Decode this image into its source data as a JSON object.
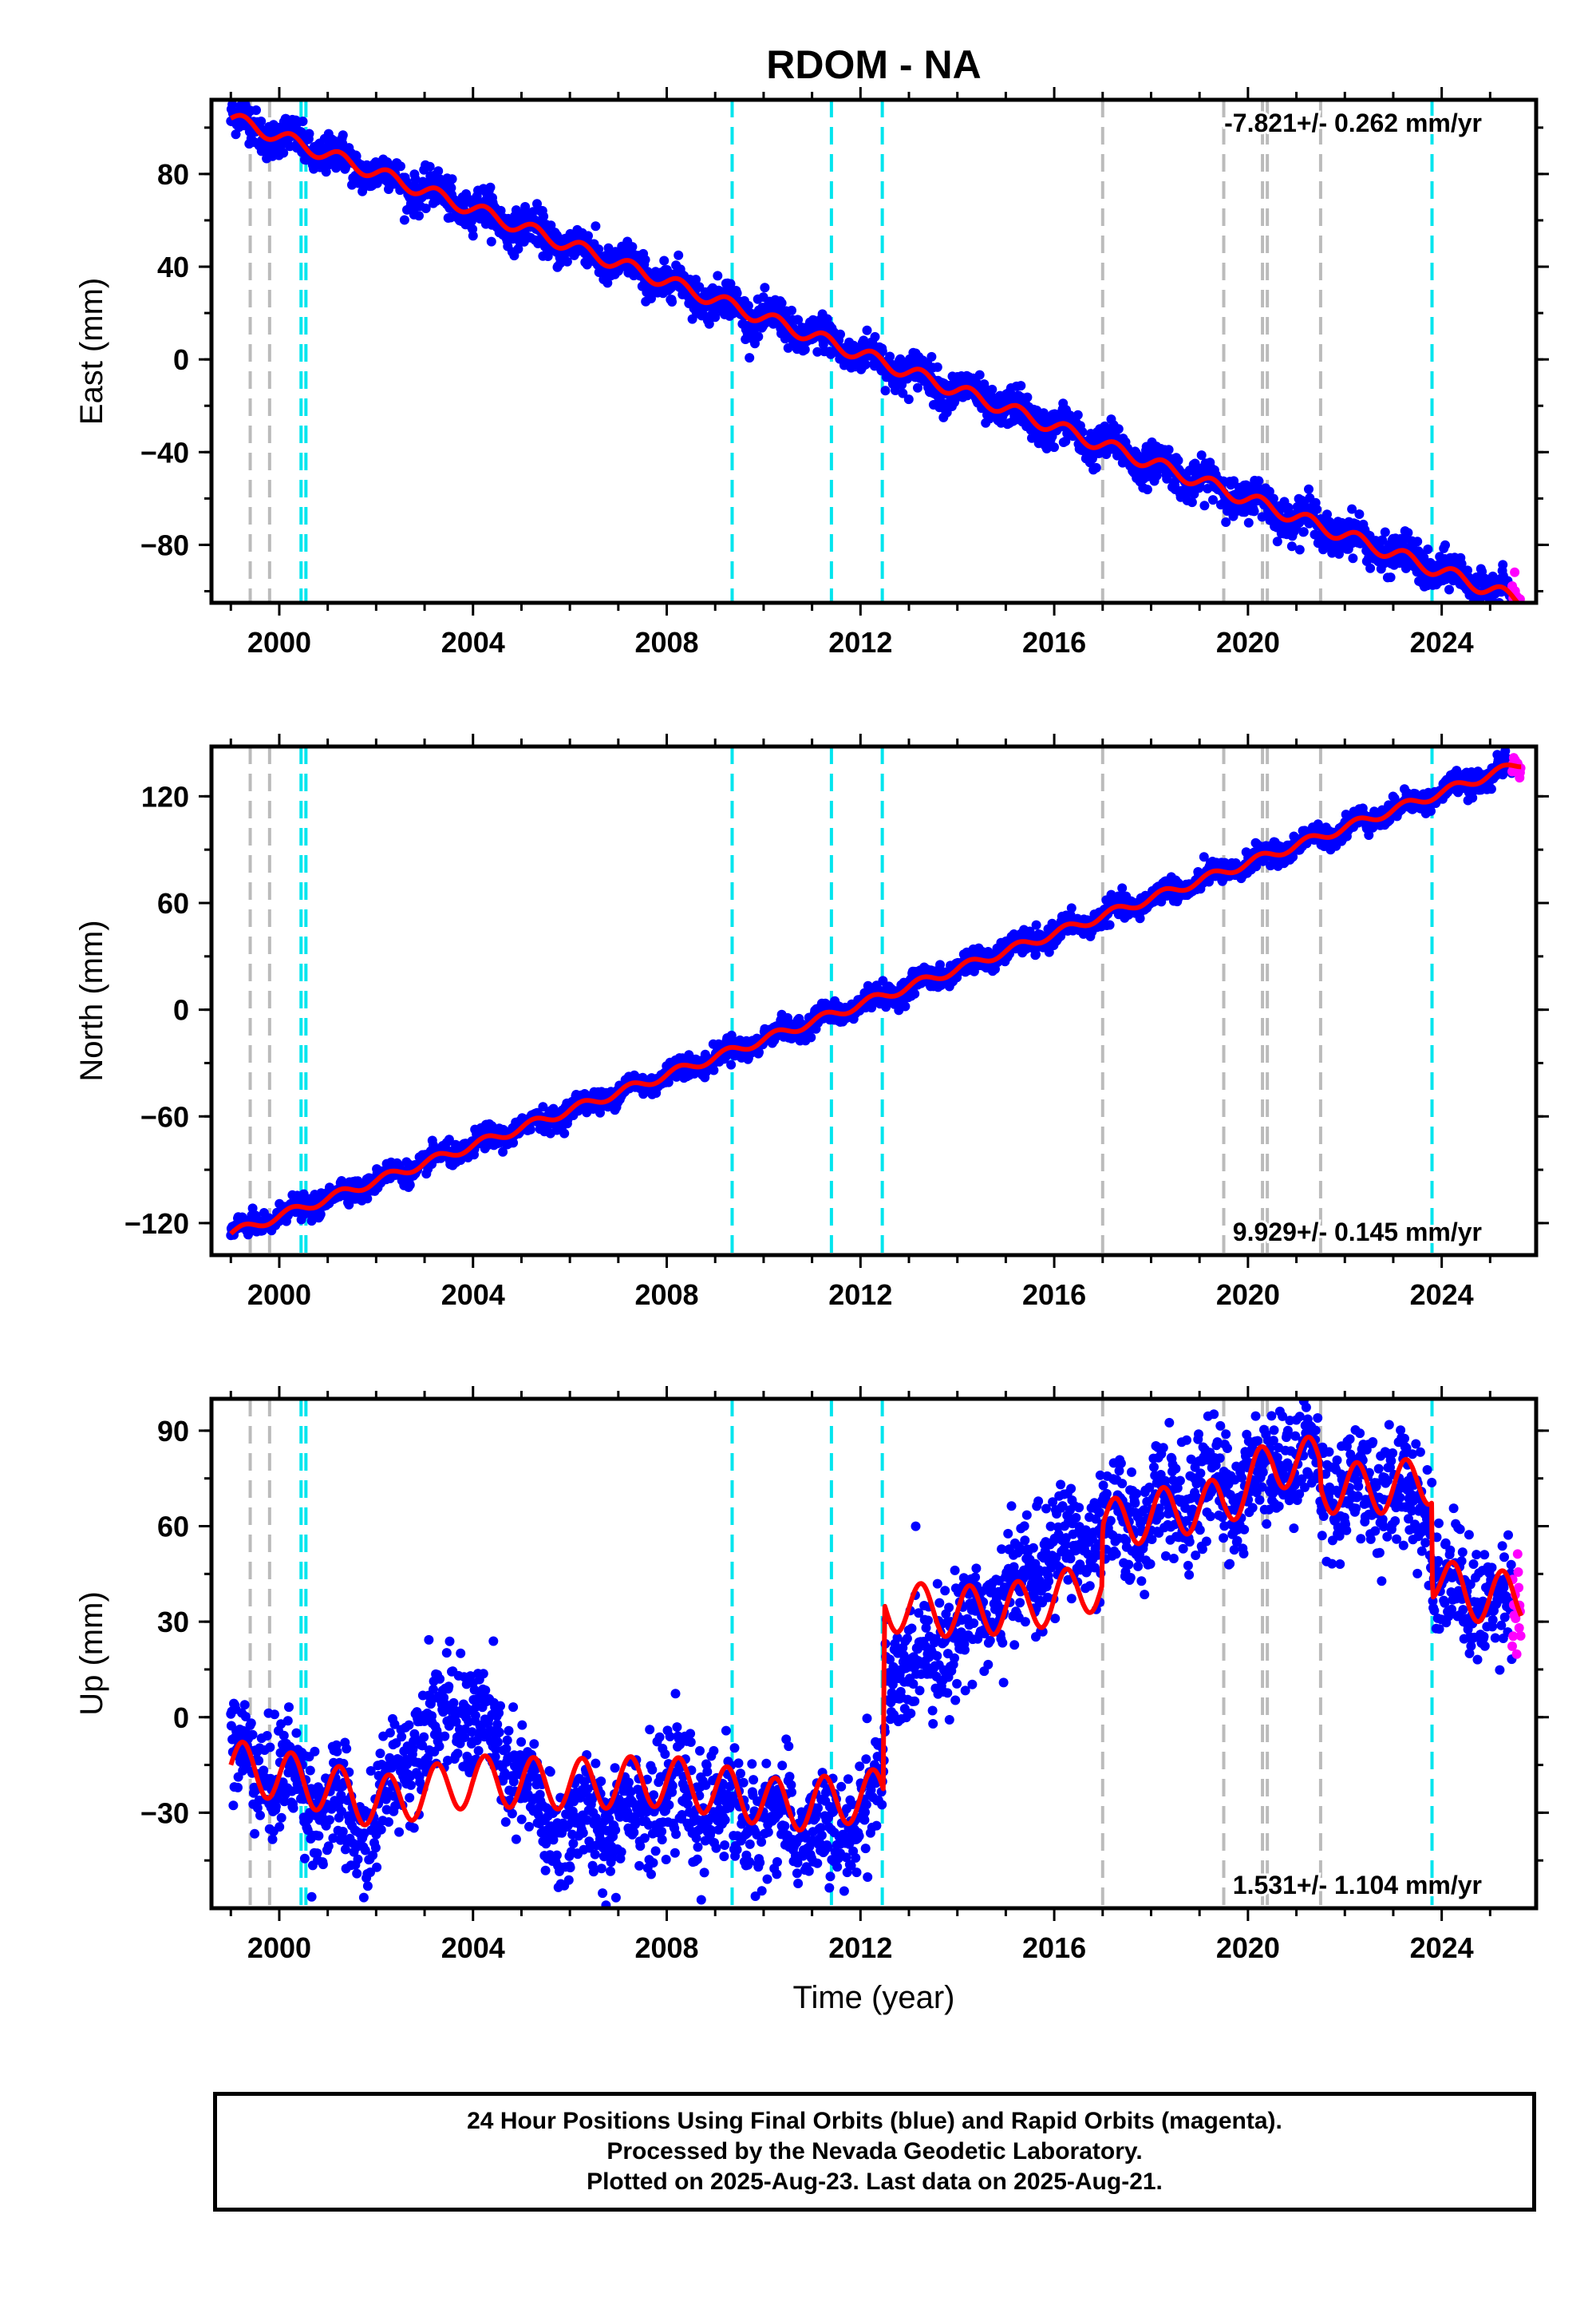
{
  "title": "RDOM - NA",
  "xlabel": "Time (year)",
  "colors": {
    "final_orbits": "#0000ff",
    "rapid_orbits": "#ff00ff",
    "model": "#ff0000",
    "equipment_change": "#bbbbbb",
    "earthquake": "#00e5ee"
  },
  "footer": {
    "line1": "24 Hour Positions Using Final Orbits (blue) and Rapid Orbits (magenta).",
    "line2": "Processed by the Nevada Geodetic Laboratory.",
    "line3": "Plotted on 2025-Aug-23. Last data on 2025-Aug-21."
  },
  "chart_data": [
    {
      "type": "scatter",
      "component": "east",
      "ylabel": "East (mm)",
      "rate_label": "-7.821+/- 0.262 mm/yr",
      "xlim": [
        1998.6,
        2025.95
      ],
      "ylim": [
        -105,
        112
      ],
      "yticks": [
        -80,
        -40,
        0,
        40,
        80
      ],
      "xticks": [
        2000,
        2004,
        2008,
        2012,
        2016,
        2020,
        2024
      ],
      "trend": {
        "t0": 1999.0,
        "v0": 104,
        "rate": -7.821
      },
      "annual_amplitude": 3.0,
      "offsets": [],
      "noise": 4
    },
    {
      "type": "scatter",
      "component": "north",
      "ylabel": "North (mm)",
      "rate_label": "9.929+/- 0.145 mm/yr",
      "xlim": [
        1998.6,
        2025.95
      ],
      "ylim": [
        -138,
        148
      ],
      "yticks": [
        -120,
        -60,
        0,
        60,
        120
      ],
      "xticks": [
        2000,
        2004,
        2008,
        2012,
        2016,
        2020,
        2024
      ],
      "trend": {
        "t0": 1999.0,
        "v0": -126,
        "rate": 9.929
      },
      "annual_amplitude": 2.5,
      "offsets": [],
      "noise": 3
    },
    {
      "type": "scatter",
      "component": "up",
      "ylabel": "Up (mm)",
      "rate_label": "1.531+/- 1.104 mm/yr",
      "xlim": [
        1998.6,
        2025.95
      ],
      "ylim": [
        -60,
        100
      ],
      "yticks": [
        -30,
        0,
        30,
        60,
        90
      ],
      "xticks": [
        2000,
        2004,
        2008,
        2012,
        2016,
        2020,
        2024
      ],
      "model_knots": [
        [
          1999.0,
          -15
        ],
        [
          2000.5,
          -20
        ],
        [
          2002.0,
          -27
        ],
        [
          2004.0,
          -20
        ],
        [
          2006.0,
          -21
        ],
        [
          2008.0,
          -20
        ],
        [
          2009.4,
          -24
        ],
        [
          2010.5,
          -28
        ],
        [
          2012.48,
          -24
        ],
        [
          2012.49,
          35
        ],
        [
          2014.0,
          33
        ],
        [
          2015.5,
          35
        ],
        [
          2016.99,
          42
        ],
        [
          2017.0,
          60
        ],
        [
          2018.5,
          65
        ],
        [
          2019.5,
          67
        ],
        [
          2020.5,
          80
        ],
        [
          2021.49,
          80
        ],
        [
          2021.5,
          72
        ],
        [
          2023.0,
          72
        ],
        [
          2023.8,
          75
        ],
        [
          2023.81,
          45
        ],
        [
          2024.5,
          38
        ],
        [
          2025.6,
          38
        ]
      ],
      "data_knots": [
        [
          1999.0,
          -12
        ],
        [
          2000.5,
          -22
        ],
        [
          2001.8,
          -38
        ],
        [
          2002.8,
          -5
        ],
        [
          2003.8,
          3
        ],
        [
          2004.8,
          -15
        ],
        [
          2005.5,
          -35
        ],
        [
          2006.5,
          -33
        ],
        [
          2008.0,
          -25
        ],
        [
          2009.4,
          -30
        ],
        [
          2010.5,
          -33
        ],
        [
          2011.5,
          -40
        ],
        [
          2012.48,
          -20
        ],
        [
          2012.49,
          10
        ],
        [
          2013.5,
          22
        ],
        [
          2015.0,
          38
        ],
        [
          2016.0,
          52
        ],
        [
          2017.0,
          57
        ],
        [
          2018.0,
          65
        ],
        [
          2019.0,
          70
        ],
        [
          2020.0,
          72
        ],
        [
          2020.8,
          85
        ],
        [
          2021.49,
          80
        ],
        [
          2021.5,
          72
        ],
        [
          2023.0,
          72
        ],
        [
          2023.8,
          65
        ],
        [
          2023.81,
          45
        ],
        [
          2024.5,
          38
        ],
        [
          2025.6,
          36
        ]
      ],
      "annual_amplitude": 8,
      "noise": 9
    }
  ],
  "equipment_changes": [
    1999.4,
    1999.8,
    2017.0,
    2019.5,
    2020.3,
    2020.4,
    2021.5
  ],
  "earthquakes": [
    2000.45,
    2000.55,
    2009.35,
    2011.4,
    2012.45,
    2023.8
  ],
  "data_range": [
    1999.0,
    2025.64
  ],
  "rapid_start": 2025.45
}
